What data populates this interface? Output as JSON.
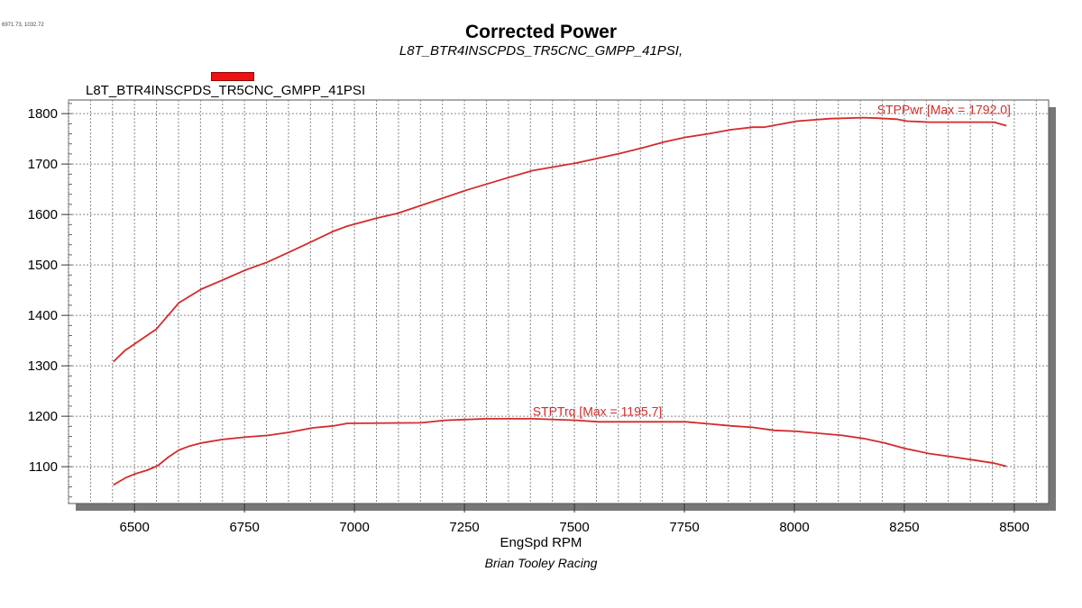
{
  "coordinate_readout": "6971.73, 1032.72",
  "chart_data": {
    "type": "line",
    "title": "Corrected Power",
    "subtitle": "L8T_BTR4INSCPDS_TR5CNC_GMPP_41PSI,",
    "legend": {
      "label": "L8T_BTR4INSCPDS_TR5CNC_GMPP_41PSI",
      "color": "#ee1111",
      "placement": "top-left"
    },
    "xlabel": "EngSpd RPM",
    "ylabel": "",
    "footer": "Brian Tooley Racing",
    "xlim": [
      6350,
      8578
    ],
    "ylim": [
      1027,
      1827
    ],
    "xticks": [
      "6500",
      "6750",
      "7000",
      "7250",
      "7500",
      "7750",
      "8000",
      "8250",
      "8500"
    ],
    "yticks": [
      "1100",
      "1200",
      "1300",
      "1400",
      "1500",
      "1600",
      "1700",
      "1800"
    ],
    "grid": true,
    "series": [
      {
        "name": "STPPwr",
        "annotation": "STPPwr [Max = 1792.0]",
        "color": "#d42a2a",
        "x": [
          6452,
          6478,
          6550,
          6601,
          6652,
          6700,
          6753,
          6803,
          6851,
          6902,
          6953,
          6984,
          7052,
          7097,
          7152,
          7254,
          7353,
          7405,
          7504,
          7603,
          7654,
          7705,
          7753,
          7805,
          7856,
          7906,
          7931,
          8006,
          8082,
          8157,
          8188,
          8232,
          8256,
          8307,
          8454,
          8482
        ],
        "y": [
          1308,
          1330,
          1373,
          1425,
          1452,
          1470,
          1490,
          1506,
          1525,
          1546,
          1567,
          1577,
          1593,
          1602,
          1618,
          1648,
          1674,
          1687,
          1702,
          1721,
          1732,
          1744,
          1753,
          1760,
          1768,
          1773,
          1773,
          1785,
          1790,
          1792,
          1791,
          1789,
          1785,
          1783,
          1783,
          1776
        ]
      },
      {
        "name": "STPTrq",
        "annotation": "STPTrq [Max = 1195.7]",
        "color": "#d42a2a",
        "x": [
          6452,
          6482,
          6502,
          6529,
          6553,
          6577,
          6601,
          6625,
          6652,
          6700,
          6755,
          6803,
          6851,
          6905,
          6953,
          6984,
          7152,
          7206,
          7302,
          7405,
          7504,
          7555,
          7753,
          7805,
          7856,
          7904,
          7955,
          8006,
          8109,
          8157,
          8205,
          8252,
          8307,
          8355,
          8402,
          8454,
          8482
        ],
        "y": [
          1064,
          1079,
          1086,
          1093,
          1102,
          1119,
          1133,
          1141,
          1147,
          1154,
          1159,
          1162,
          1168,
          1177,
          1181,
          1186,
          1187,
          1192,
          1195,
          1195,
          1192,
          1189,
          1189,
          1185,
          1181,
          1178,
          1172,
          1170,
          1162,
          1156,
          1147,
          1136,
          1126,
          1120,
          1114,
          1107,
          1101
        ]
      }
    ]
  }
}
